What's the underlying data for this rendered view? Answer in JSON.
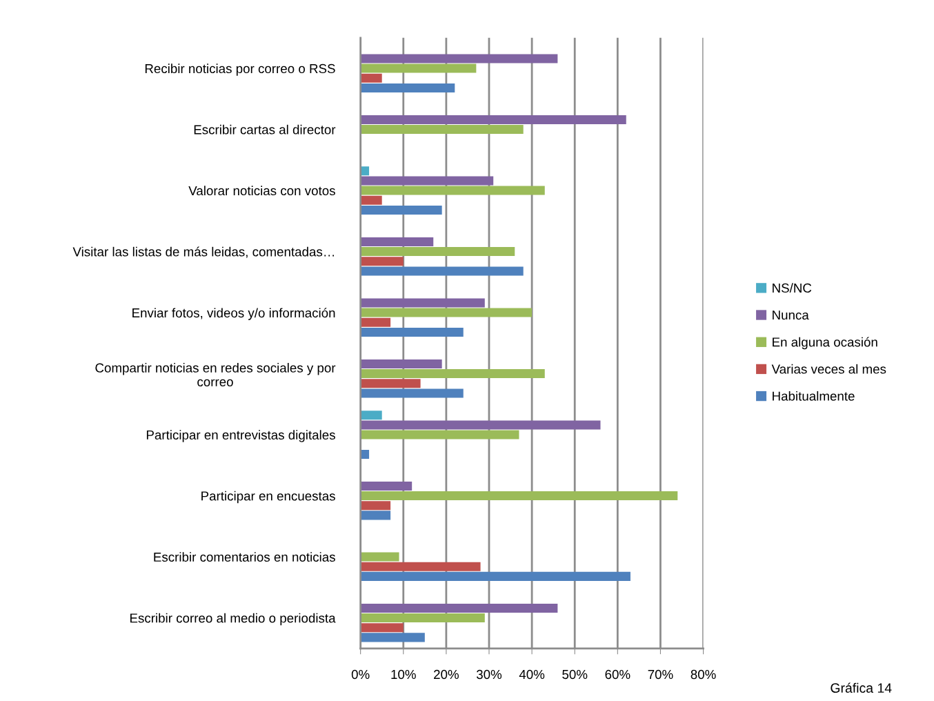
{
  "chart_data": {
    "type": "bar",
    "orientation": "horizontal",
    "categories": [
      "Recibir noticias por correo o RSS",
      "Escribir cartas al director",
      "Valorar noticias con votos",
      "Visitar las listas de más leidas, comentadas…",
      "Enviar fotos, videos y/o información",
      "Compartir noticias en redes sociales y por\ncorreo",
      "Participar en entrevistas digitales",
      "Participar en encuestas",
      "Escribir comentarios en noticias",
      "Escribir correo al medio o periodista"
    ],
    "series": [
      {
        "name": "NS/NC",
        "color": "#4bacc6",
        "values": [
          0,
          0,
          2,
          0,
          0,
          0,
          5,
          0,
          0,
          0
        ]
      },
      {
        "name": "Nunca",
        "color": "#8064a2",
        "values": [
          46,
          62,
          31,
          17,
          29,
          19,
          56,
          12,
          0,
          46
        ]
      },
      {
        "name": "En alguna ocasión",
        "color": "#9bbb59",
        "values": [
          27,
          38,
          43,
          36,
          40,
          43,
          37,
          74,
          9,
          29
        ]
      },
      {
        "name": "Varias veces al mes",
        "color": "#c0504d",
        "values": [
          5,
          0,
          5,
          10,
          7,
          14,
          0,
          7,
          28,
          10
        ]
      },
      {
        "name": "Habitualmente",
        "color": "#4f81bd",
        "values": [
          22,
          0,
          19,
          38,
          24,
          24,
          2,
          7,
          63,
          15
        ]
      }
    ],
    "xlim": [
      0,
      80
    ],
    "xticks": [
      {
        "value": 0,
        "label": "0%"
      },
      {
        "value": 10,
        "label": "10%"
      },
      {
        "value": 20,
        "label": "20%"
      },
      {
        "value": 30,
        "label": "30%"
      },
      {
        "value": 40,
        "label": "40%"
      },
      {
        "value": 50,
        "label": "50%"
      },
      {
        "value": 60,
        "label": "60%"
      },
      {
        "value": 70,
        "label": "70%"
      },
      {
        "value": 80,
        "label": "80%"
      }
    ],
    "grid": "x",
    "legend": "right",
    "annotations": [
      "Gráfica 14"
    ]
  }
}
